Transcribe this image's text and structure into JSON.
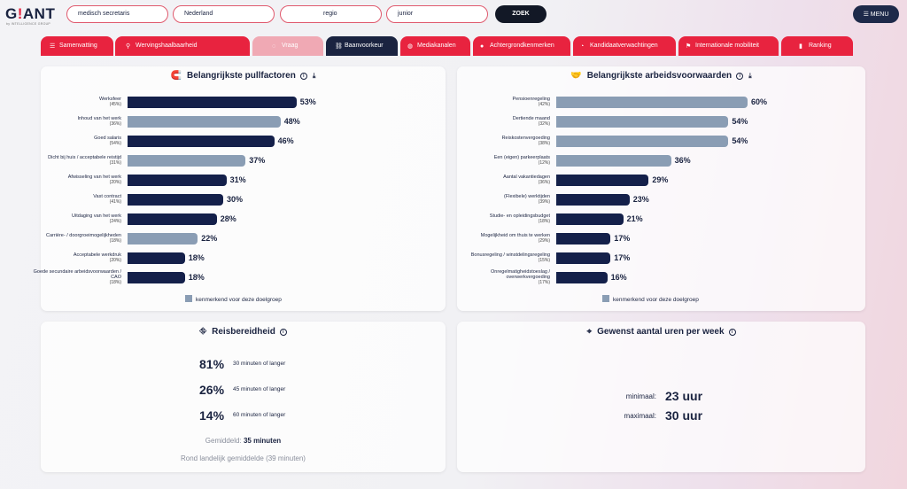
{
  "logo": {
    "main": "G",
    "bang": "!",
    "rest": "ANT",
    "sub": "by INTELLIGENCE GROUP"
  },
  "search": {
    "function": "medisch secretaris",
    "country": "Nederland",
    "region": "regio",
    "level": "junior",
    "button": "ZOEK"
  },
  "menu": {
    "label": "MENU",
    "icon": "hamburger-icon"
  },
  "tabs": [
    {
      "label": "Samenvatting",
      "icon": "list-icon"
    },
    {
      "label": "Wervingshaalbaarheid",
      "icon": "search-icon"
    },
    {
      "label": "Vraag",
      "icon": "spinner-icon"
    },
    {
      "label": "Baanvoorkeur",
      "icon": "link-icon"
    },
    {
      "label": "Mediakanalen",
      "icon": "globe-icon"
    },
    {
      "label": "Achtergrondkenmerken",
      "icon": "users-icon"
    },
    {
      "label": "Kandidaatverwachtingen",
      "icon": "timer-icon"
    },
    {
      "label": "Internationale mobiliteit",
      "icon": "flag-icon"
    },
    {
      "label": "Ranking",
      "icon": "bar-chart-icon"
    }
  ],
  "pull": {
    "title": "Belangrijkste pullfactoren",
    "legend": "kenmerkend voor deze doelgroep",
    "chart_data": {
      "type": "bar",
      "categories": [
        "Werksfeer",
        "Inhoud van het werk",
        "Goed salaris",
        "Dicht bij huis / acceptabele reistijd",
        "Afwisseling van het werk",
        "Vast contract",
        "Uitdaging van het werk",
        "Carrière- / doorgroeimogelijkheden",
        "Acceptabele werkdruk",
        "Goede secundaire arbeidsvoorwaarden / CAO"
      ],
      "subs": [
        "(45%)",
        "(36%)",
        "(54%)",
        "(31%)",
        "(20%)",
        "(41%)",
        "(24%)",
        "(18%)",
        "(20%)",
        "(18%)"
      ],
      "values": [
        53,
        48,
        46,
        37,
        31,
        30,
        28,
        22,
        18,
        18
      ],
      "labels": [
        "53%",
        "48%",
        "46%",
        "37%",
        "31%",
        "30%",
        "28%",
        "22%",
        "18%",
        "18%"
      ],
      "highlight": [
        false,
        true,
        false,
        true,
        false,
        false,
        false,
        true,
        false,
        false
      ],
      "colors": {
        "normal": "#14204a",
        "highlight": "#8a9db4"
      }
    }
  },
  "arb": {
    "title": "Belangrijkste arbeidsvoorwaarden",
    "legend": "kenmerkend voor deze doelgroep",
    "chart_data": {
      "type": "bar",
      "categories": [
        "Pensioenregeling",
        "Dertiende maand",
        "Reiskostenvergoeding",
        "Een (eigen) parkeerplaats",
        "Aantal vakantiedagen",
        "(Flexibele) werktijden",
        "Studie- en opleidingsbudget",
        "Mogelijkheid om thuis te werken",
        "Bonusregeling / winstdelingsregeling",
        "Onregelmatigheidstoeslag / overwerkvergoeding"
      ],
      "subs": [
        "(42%)",
        "(32%)",
        "(38%)",
        "(12%)",
        "(36%)",
        "(39%)",
        "(18%)",
        "(29%)",
        "(15%)",
        "(17%)"
      ],
      "values": [
        60,
        54,
        54,
        36,
        29,
        23,
        21,
        17,
        17,
        16
      ],
      "labels": [
        "60%",
        "54%",
        "54%",
        "36%",
        "29%",
        "23%",
        "21%",
        "17%",
        "17%",
        "16%"
      ],
      "highlight": [
        true,
        true,
        true,
        true,
        false,
        false,
        false,
        false,
        false,
        false
      ],
      "colors": {
        "normal": "#14204a",
        "highlight": "#8a9db4"
      }
    }
  },
  "reis": {
    "title": "Reisbereidheid",
    "rows": [
      {
        "pct": "81%",
        "desc": "30 minuten of langer"
      },
      {
        "pct": "26%",
        "desc": "45 minuten of langer"
      },
      {
        "pct": "14%",
        "desc": "60 minuten of langer"
      }
    ],
    "avg_label": "Gemiddeld:",
    "avg_value": "35 minuten",
    "national": "Rond landelijk gemiddelde (39 minuten)"
  },
  "uren": {
    "title": "Gewenst aantal uren per week",
    "min_label": "minimaal:",
    "min_value": "23 uur",
    "max_label": "maximaal:",
    "max_value": "30 uur"
  }
}
